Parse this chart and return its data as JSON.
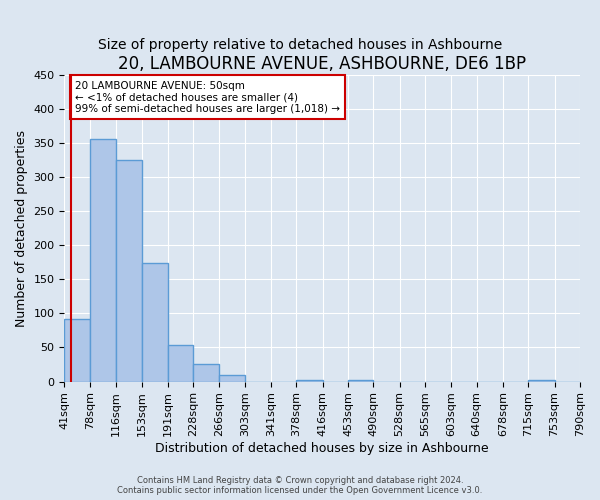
{
  "title": "20, LAMBOURNE AVENUE, ASHBOURNE, DE6 1BP",
  "subtitle": "Size of property relative to detached houses in Ashbourne",
  "xlabel": "Distribution of detached houses by size in Ashbourne",
  "ylabel": "Number of detached properties",
  "bar_edges": [
    41,
    78,
    116,
    153,
    191,
    228,
    266,
    303,
    341,
    378,
    416,
    453,
    490,
    528,
    565,
    603,
    640,
    678,
    715,
    753,
    790
  ],
  "bar_heights": [
    92,
    356,
    325,
    174,
    53,
    26,
    9,
    0,
    0,
    2,
    0,
    2,
    0,
    0,
    0,
    0,
    0,
    0,
    2,
    0
  ],
  "bar_color": "#aec6e8",
  "bar_edge_color": "#5b9bd5",
  "bar_edge_width": 1.0,
  "property_line_x": 50,
  "property_line_color": "#cc0000",
  "annotation_text": "20 LAMBOURNE AVENUE: 50sqm\n← <1% of detached houses are smaller (4)\n99% of semi-detached houses are larger (1,018) →",
  "annotation_box_color": "#ffffff",
  "annotation_box_edge_color": "#cc0000",
  "ylim": [
    0,
    450
  ],
  "yticks": [
    0,
    50,
    100,
    150,
    200,
    250,
    300,
    350,
    400,
    450
  ],
  "background_color": "#dce6f1",
  "grid_color": "#ffffff",
  "title_fontsize": 12,
  "subtitle_fontsize": 10,
  "axis_label_fontsize": 9,
  "tick_fontsize": 8,
  "footer_text": "Contains HM Land Registry data © Crown copyright and database right 2024.\nContains public sector information licensed under the Open Government Licence v3.0."
}
